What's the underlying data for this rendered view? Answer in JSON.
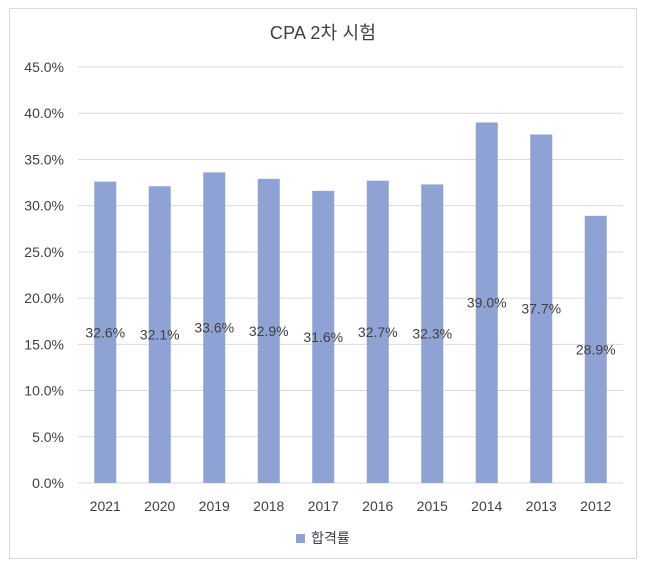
{
  "chart_data": {
    "type": "bar",
    "title": "CPA 2차 시험",
    "xlabel": "",
    "ylabel": "",
    "categories": [
      "2021",
      "2020",
      "2019",
      "2018",
      "2017",
      "2016",
      "2015",
      "2014",
      "2013",
      "2012"
    ],
    "series": [
      {
        "name": "합격률",
        "values": [
          32.6,
          32.1,
          33.6,
          32.9,
          31.6,
          32.7,
          32.3,
          39.0,
          37.7,
          28.9
        ],
        "labels": [
          "32.6%",
          "32.1%",
          "33.6%",
          "32.9%",
          "31.6%",
          "32.7%",
          "32.3%",
          "39.0%",
          "37.7%",
          "28.9%"
        ],
        "color": "#8fa2d4"
      }
    ],
    "ylim": [
      0,
      45
    ],
    "yticks": [
      "0.0%",
      "5.0%",
      "10.0%",
      "15.0%",
      "20.0%",
      "25.0%",
      "30.0%",
      "35.0%",
      "40.0%",
      "45.0%"
    ],
    "grid": true,
    "legend": "bottom"
  }
}
